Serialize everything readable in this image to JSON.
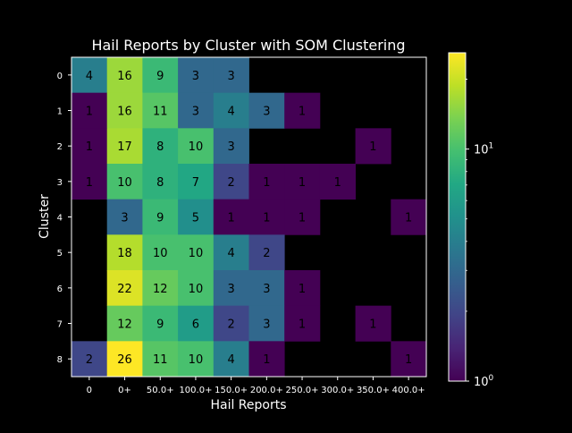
{
  "chart_data": {
    "type": "heatmap",
    "title": "Hail Reports by Cluster with SOM Clustering",
    "xlabel": "Hail Reports",
    "ylabel": "Cluster",
    "x_categories": [
      "0",
      "0+",
      "50.0+",
      "100.0+",
      "150.0+",
      "200.0+",
      "250.0+",
      "300.0+",
      "350.0+",
      "400.0+"
    ],
    "y_categories": [
      "0",
      "1",
      "2",
      "3",
      "4",
      "5",
      "6",
      "7",
      "8"
    ],
    "values": [
      [
        4,
        16,
        9,
        3,
        3,
        null,
        null,
        null,
        null,
        null
      ],
      [
        1,
        16,
        11,
        3,
        4,
        3,
        1,
        null,
        null,
        null
      ],
      [
        1,
        17,
        8,
        10,
        3,
        null,
        null,
        null,
        1,
        null
      ],
      [
        1,
        10,
        8,
        7,
        2,
        1,
        1,
        1,
        null,
        null
      ],
      [
        null,
        3,
        9,
        5,
        1,
        1,
        1,
        null,
        null,
        1
      ],
      [
        null,
        18,
        10,
        10,
        4,
        2,
        null,
        null,
        null,
        null
      ],
      [
        null,
        22,
        12,
        10,
        3,
        3,
        1,
        null,
        null,
        null
      ],
      [
        null,
        12,
        9,
        6,
        2,
        3,
        1,
        null,
        1,
        null
      ],
      [
        2,
        26,
        11,
        10,
        4,
        1,
        null,
        null,
        null,
        1
      ]
    ],
    "colorbar": {
      "scale": "log",
      "range": [
        1,
        26
      ],
      "colormap": "viridis",
      "ticks": [
        {
          "value": 10,
          "base": "10",
          "exp": "1"
        },
        {
          "value": 1,
          "base": "10",
          "exp": "0"
        }
      ]
    },
    "colors": {
      "background": "#000000",
      "empty_cell": "#000000",
      "axis": "#ffffff",
      "text": "#ffffff",
      "cell_text": "#000000"
    }
  }
}
